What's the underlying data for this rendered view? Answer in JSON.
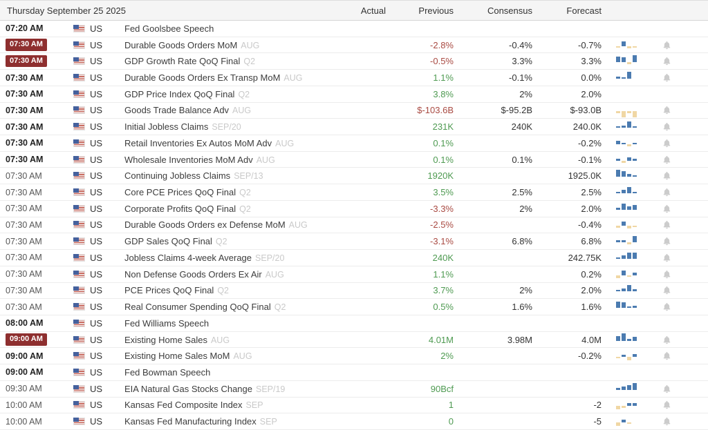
{
  "header": {
    "date": "Thursday September 25 2025",
    "columns": [
      "Actual",
      "Previous",
      "Consensus",
      "Forecast"
    ]
  },
  "colors": {
    "badge_bg": "#8e2f2f",
    "green": "#4e9a51",
    "red": "#a94a42",
    "bar_blue": "#4b7bb0",
    "bar_orange": "#f0d7a4",
    "bell": "#cccccc",
    "header_bg": "#f5f5f5"
  },
  "rows": [
    {
      "time": "07:20 AM",
      "time_style": "bold",
      "country": "US",
      "event": "Fed Goolsbee Speech",
      "ref": "",
      "actual": "",
      "previous": "",
      "previous_color": "",
      "consensus": "",
      "forecast": "",
      "chart": [],
      "bell": false
    },
    {
      "time": "07:30 AM",
      "time_style": "badge",
      "country": "US",
      "event": "Durable Goods Orders MoM",
      "ref": "AUG",
      "actual": "",
      "previous": "-2.8%",
      "previous_color": "red",
      "consensus": "-0.4%",
      "forecast": "-0.7%",
      "chart": [
        [
          -1,
          "o"
        ],
        [
          3,
          "b"
        ],
        [
          -1.5,
          "o"
        ],
        [
          -0.5,
          "o"
        ]
      ],
      "bell": true
    },
    {
      "time": "07:30 AM",
      "time_style": "badge",
      "country": "US",
      "event": "GDP Growth Rate QoQ Final",
      "ref": "Q2",
      "actual": "",
      "previous": "-0.5%",
      "previous_color": "red",
      "consensus": "3.3%",
      "forecast": "3.3%",
      "chart": [
        [
          3.5,
          "b"
        ],
        [
          3,
          "b"
        ],
        [
          -1,
          "o"
        ],
        [
          4.5,
          "b"
        ]
      ],
      "bell": true
    },
    {
      "time": "07:30 AM",
      "time_style": "bold",
      "country": "US",
      "event": "Durable Goods Orders Ex Transp MoM",
      "ref": "AUG",
      "actual": "",
      "previous": "1.1%",
      "previous_color": "green",
      "consensus": "-0.1%",
      "forecast": "0.0%",
      "chart": [
        [
          1.5,
          "b"
        ],
        [
          1,
          "b"
        ],
        [
          4.5,
          "b"
        ]
      ],
      "bell": true
    },
    {
      "time": "07:30 AM",
      "time_style": "bold",
      "country": "US",
      "event": "GDP Price Index QoQ Final",
      "ref": "Q2",
      "actual": "",
      "previous": "3.8%",
      "previous_color": "green",
      "consensus": "2%",
      "forecast": "2.0%",
      "chart": [],
      "bell": false
    },
    {
      "time": "07:30 AM",
      "time_style": "bold",
      "country": "US",
      "event": "Goods Trade Balance Adv",
      "ref": "AUG",
      "actual": "",
      "previous": "$-103.6B",
      "previous_color": "red",
      "consensus": "$-95.2B",
      "forecast": "$-93.0B",
      "chart": [
        [
          -1.2,
          "o"
        ],
        [
          -3.5,
          "o"
        ],
        [
          -1,
          "o"
        ],
        [
          -5,
          "o"
        ]
      ],
      "bell": true
    },
    {
      "time": "07:30 AM",
      "time_style": "bold",
      "country": "US",
      "event": "Initial Jobless Claims",
      "ref": "SEP/20",
      "actual": "",
      "previous": "231K",
      "previous_color": "green",
      "consensus": "240K",
      "forecast": "240.0K",
      "chart": [
        [
          1,
          "b"
        ],
        [
          1.5,
          "b"
        ],
        [
          4,
          "b"
        ],
        [
          1,
          "b"
        ]
      ],
      "bell": true
    },
    {
      "time": "07:30 AM",
      "time_style": "bold",
      "country": "US",
      "event": "Retail Inventories Ex Autos MoM Adv",
      "ref": "AUG",
      "actual": "",
      "previous": "0.1%",
      "previous_color": "green",
      "consensus": "",
      "forecast": "-0.2%",
      "chart": [
        [
          2,
          "b"
        ],
        [
          1,
          "b"
        ],
        [
          -1.5,
          "o"
        ],
        [
          1,
          "b"
        ]
      ],
      "bell": true
    },
    {
      "time": "07:30 AM",
      "time_style": "bold",
      "country": "US",
      "event": "Wholesale Inventories MoM Adv",
      "ref": "AUG",
      "actual": "",
      "previous": "0.1%",
      "previous_color": "green",
      "consensus": "0.1%",
      "forecast": "-0.1%",
      "chart": [
        [
          1,
          "b"
        ],
        [
          -1.5,
          "o"
        ],
        [
          2,
          "b"
        ],
        [
          1,
          "b"
        ]
      ],
      "bell": true
    },
    {
      "time": "07:30 AM",
      "time_style": "normal",
      "country": "US",
      "event": "Continuing Jobless Claims",
      "ref": "SEP/13",
      "actual": "",
      "previous": "1920K",
      "previous_color": "green",
      "consensus": "",
      "forecast": "1925.0K",
      "chart": [
        [
          4.5,
          "b"
        ],
        [
          3.5,
          "b"
        ],
        [
          2,
          "b"
        ],
        [
          1,
          "b"
        ]
      ],
      "bell": true
    },
    {
      "time": "07:30 AM",
      "time_style": "normal",
      "country": "US",
      "event": "Core PCE Prices QoQ Final",
      "ref": "Q2",
      "actual": "",
      "previous": "3.5%",
      "previous_color": "green",
      "consensus": "2.5%",
      "forecast": "2.5%",
      "chart": [
        [
          1,
          "b"
        ],
        [
          2,
          "b"
        ],
        [
          4,
          "b"
        ],
        [
          1,
          "b"
        ]
      ],
      "bell": true
    },
    {
      "time": "07:30 AM",
      "time_style": "normal",
      "country": "US",
      "event": "Corporate Profits QoQ Final",
      "ref": "Q2",
      "actual": "",
      "previous": "-3.3%",
      "previous_color": "red",
      "consensus": "2%",
      "forecast": "2.0%",
      "chart": [
        [
          1,
          "b"
        ],
        [
          4,
          "b"
        ],
        [
          2,
          "b"
        ],
        [
          3,
          "b"
        ]
      ],
      "bell": true
    },
    {
      "time": "07:30 AM",
      "time_style": "normal",
      "country": "US",
      "event": "Durable Goods Orders ex Defense MoM",
      "ref": "AUG",
      "actual": "",
      "previous": "-2.5%",
      "previous_color": "red",
      "consensus": "",
      "forecast": "-0.4%",
      "chart": [
        [
          -1,
          "o"
        ],
        [
          3,
          "b"
        ],
        [
          -1.5,
          "o"
        ],
        [
          -0.5,
          "o"
        ]
      ],
      "bell": true
    },
    {
      "time": "07:30 AM",
      "time_style": "normal",
      "country": "US",
      "event": "GDP Sales QoQ Final",
      "ref": "Q2",
      "actual": "",
      "previous": "-3.1%",
      "previous_color": "red",
      "consensus": "6.8%",
      "forecast": "6.8%",
      "chart": [
        [
          1.5,
          "b"
        ],
        [
          1.5,
          "b"
        ],
        [
          -1,
          "o"
        ],
        [
          4,
          "b"
        ]
      ],
      "bell": true
    },
    {
      "time": "07:30 AM",
      "time_style": "normal",
      "country": "US",
      "event": "Jobless Claims 4-week Average",
      "ref": "SEP/20",
      "actual": "",
      "previous": "240K",
      "previous_color": "green",
      "consensus": "",
      "forecast": "242.75K",
      "chart": [
        [
          1,
          "b"
        ],
        [
          2,
          "b"
        ],
        [
          4,
          "b"
        ],
        [
          4,
          "b"
        ]
      ],
      "bell": true
    },
    {
      "time": "07:30 AM",
      "time_style": "normal",
      "country": "US",
      "event": "Non Defense Goods Orders Ex Air",
      "ref": "AUG",
      "actual": "",
      "previous": "1.1%",
      "previous_color": "green",
      "consensus": "",
      "forecast": "0.2%",
      "chart": [
        [
          -2,
          "o"
        ],
        [
          3,
          "b"
        ],
        [
          -1,
          "o"
        ],
        [
          1.5,
          "b"
        ]
      ],
      "bell": true
    },
    {
      "time": "07:30 AM",
      "time_style": "normal",
      "country": "US",
      "event": "PCE Prices QoQ Final",
      "ref": "Q2",
      "actual": "",
      "previous": "3.7%",
      "previous_color": "green",
      "consensus": "2%",
      "forecast": "2.0%",
      "chart": [
        [
          1,
          "b"
        ],
        [
          2,
          "b"
        ],
        [
          4,
          "b"
        ],
        [
          1.5,
          "b"
        ]
      ],
      "bell": true
    },
    {
      "time": "07:30 AM",
      "time_style": "normal",
      "country": "US",
      "event": "Real Consumer Spending QoQ Final",
      "ref": "Q2",
      "actual": "",
      "previous": "0.5%",
      "previous_color": "green",
      "consensus": "1.6%",
      "forecast": "1.6%",
      "chart": [
        [
          4,
          "b"
        ],
        [
          3.5,
          "b"
        ],
        [
          1,
          "b"
        ],
        [
          1.5,
          "b"
        ]
      ],
      "bell": true
    },
    {
      "time": "08:00 AM",
      "time_style": "bold",
      "country": "US",
      "event": "Fed Williams Speech",
      "ref": "",
      "actual": "",
      "previous": "",
      "previous_color": "",
      "consensus": "",
      "forecast": "",
      "chart": [],
      "bell": false
    },
    {
      "time": "09:00 AM",
      "time_style": "badge",
      "country": "US",
      "event": "Existing Home Sales",
      "ref": "AUG",
      "actual": "",
      "previous": "4.01M",
      "previous_color": "green",
      "consensus": "3.98M",
      "forecast": "4.0M",
      "chart": [
        [
          3,
          "b"
        ],
        [
          4.5,
          "b"
        ],
        [
          1,
          "b"
        ],
        [
          2.5,
          "b"
        ]
      ],
      "bell": true
    },
    {
      "time": "09:00 AM",
      "time_style": "bold",
      "country": "US",
      "event": "Existing Home Sales MoM",
      "ref": "AUG",
      "actual": "",
      "previous": "2%",
      "previous_color": "green",
      "consensus": "",
      "forecast": "-0.2%",
      "chart": [
        [
          -0.5,
          "o"
        ],
        [
          1.5,
          "b"
        ],
        [
          -2,
          "o"
        ],
        [
          2,
          "b"
        ]
      ],
      "bell": true
    },
    {
      "time": "09:00 AM",
      "time_style": "bold",
      "country": "US",
      "event": "Fed Bowman Speech",
      "ref": "",
      "actual": "",
      "previous": "",
      "previous_color": "",
      "consensus": "",
      "forecast": "",
      "chart": [],
      "bell": false
    },
    {
      "time": "09:30 AM",
      "time_style": "normal",
      "country": "US",
      "event": "EIA Natural Gas Stocks Change",
      "ref": "SEP/19",
      "actual": "",
      "previous": "90Bcf",
      "previous_color": "green",
      "consensus": "",
      "forecast": "",
      "chart": [
        [
          1,
          "b"
        ],
        [
          2,
          "b"
        ],
        [
          3,
          "b"
        ],
        [
          4,
          "b"
        ]
      ],
      "bell": true
    },
    {
      "time": "10:00 AM",
      "time_style": "normal",
      "country": "US",
      "event": "Kansas Fed Composite Index",
      "ref": "SEP",
      "actual": "",
      "previous": "1",
      "previous_color": "green",
      "consensus": "",
      "forecast": "-2",
      "chart": [
        [
          -2,
          "o"
        ],
        [
          -1,
          "o"
        ],
        [
          2,
          "b"
        ],
        [
          2,
          "b"
        ]
      ],
      "bell": true
    },
    {
      "time": "10:00 AM",
      "time_style": "normal",
      "country": "US",
      "event": "Kansas Fed Manufacturing Index",
      "ref": "SEP",
      "actual": "",
      "previous": "0",
      "previous_color": "green",
      "consensus": "",
      "forecast": "-5",
      "chart": [
        [
          -2,
          "o"
        ],
        [
          2,
          "b"
        ],
        [
          -0.5,
          "o"
        ]
      ],
      "bell": true
    }
  ]
}
